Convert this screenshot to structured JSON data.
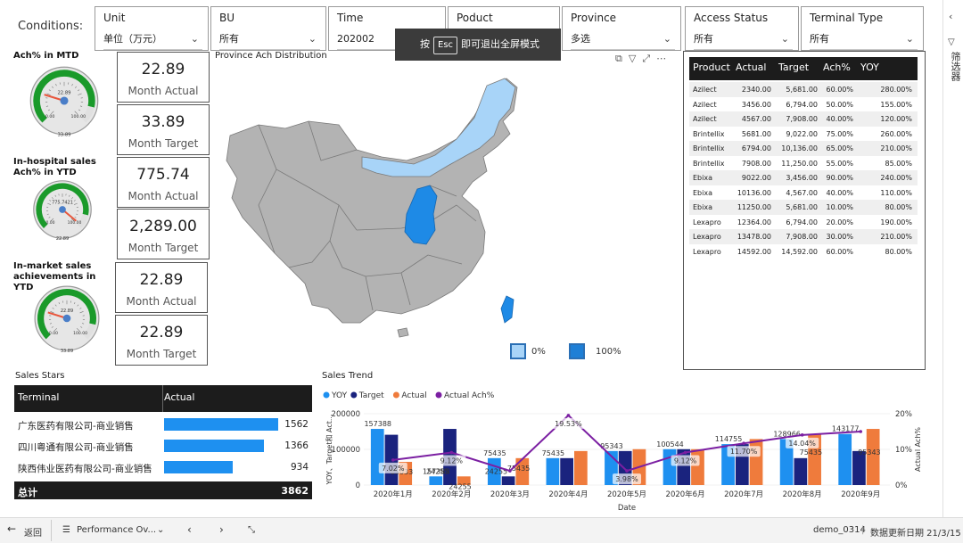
{
  "conditions_label": "Conditions:",
  "filters": [
    {
      "title": "Unit",
      "value": "单位（万元）"
    },
    {
      "title": "BU",
      "value": "所有"
    },
    {
      "title": "Time",
      "value": "202002"
    },
    {
      "title": "Poduct",
      "value": ""
    },
    {
      "title": "Province",
      "value": "多选"
    },
    {
      "title": "Access Status",
      "value": "所有"
    },
    {
      "title": "Terminal Type",
      "value": "所有"
    }
  ],
  "esc_banner": {
    "prefix": "按",
    "key": "Esc",
    "suffix": "即可退出全屏模式"
  },
  "gauges": [
    {
      "title": "Ach% in MTD",
      "value_label": "22.89",
      "min_label": "0.00",
      "max_label": "100.00",
      "bottom_label": "33.89",
      "fraction": 0.23
    },
    {
      "title": "In-hospital sales Ach% in YTD",
      "value_label": "775.7421",
      "min_label": "0.00",
      "max_label": "100.00",
      "bottom_label": "22.89",
      "fraction": 0.98
    },
    {
      "title": "In-market sales achievements in YTD",
      "value_label": "22.89",
      "min_label": "0.00",
      "max_label": "100.00",
      "bottom_label": "33.89",
      "fraction": 0.23
    }
  ],
  "kpis": [
    {
      "value": "22.89",
      "label": "Month Actual"
    },
    {
      "value": "33.89",
      "label": "Month Target"
    },
    {
      "value": "775.74",
      "label": "Month Actual"
    },
    {
      "value": "2,289.00",
      "label": "Month Target"
    },
    {
      "value": "22.89",
      "label": "Month Actual"
    },
    {
      "value": "22.89",
      "label": "Month Target"
    }
  ],
  "map": {
    "title": "Province Ach Distribution",
    "legend": [
      {
        "label": "0%",
        "color": "#a8d4f8"
      },
      {
        "label": "100%",
        "color": "#1e7fd6"
      }
    ],
    "colors": {
      "base": "#b0b0b0",
      "light": "#a8d4f8",
      "dark": "#1e8ae6"
    }
  },
  "product_table": {
    "columns": [
      "Product",
      "Actual",
      "Target",
      "Ach%",
      "YOY"
    ],
    "rows": [
      [
        "Azilect",
        "2340.00",
        "5,681.00",
        "60.00%",
        "280.00%"
      ],
      [
        "Azilect",
        "3456.00",
        "6,794.00",
        "50.00%",
        "155.00%"
      ],
      [
        "Azilect",
        "4567.00",
        "7,908.00",
        "40.00%",
        "120.00%"
      ],
      [
        "Brintellix",
        "5681.00",
        "9,022.00",
        "75.00%",
        "260.00%"
      ],
      [
        "Brintellix",
        "6794.00",
        "10,136.00",
        "65.00%",
        "210.00%"
      ],
      [
        "Brintellix",
        "7908.00",
        "11,250.00",
        "55.00%",
        "85.00%"
      ],
      [
        "Ebixa",
        "9022.00",
        "3,456.00",
        "90.00%",
        "240.00%"
      ],
      [
        "Ebixa",
        "10136.00",
        "4,567.00",
        "40.00%",
        "110.00%"
      ],
      [
        "Ebixa",
        "11250.00",
        "5,681.00",
        "10.00%",
        "80.00%"
      ],
      [
        "Lexapro",
        "12364.00",
        "6,794.00",
        "20.00%",
        "190.00%"
      ],
      [
        "Lexapro",
        "13478.00",
        "7,908.00",
        "30.00%",
        "210.00%"
      ],
      [
        "Lexapro",
        "14592.00",
        "14,592.00",
        "60.00%",
        "80.00%"
      ]
    ]
  },
  "sales_stars": {
    "title": "Sales Stars",
    "columns": [
      "Terminal",
      "Actual"
    ],
    "rows": [
      {
        "name": "广东医药有限公司-商业销售",
        "value": 1562
      },
      {
        "name": "四川粤通有限公司-商业销售",
        "value": 1366
      },
      {
        "name": "陕西伟业医药有限公司-商业销售",
        "value": 934
      }
    ],
    "total_label": "总计",
    "total_value": "3862",
    "bar_max": 1562
  },
  "chart_data": {
    "type": "bar",
    "title": "Sales Trend",
    "xlabel": "Date",
    "ylabel": "YOY、Target和 Act...",
    "y2label": "Actual Ach%",
    "categories": [
      "2020年1月",
      "2020年2月",
      "2020年3月",
      "2020年4月",
      "2020年5月",
      "2020年6月",
      "2020年7月",
      "2020年8月",
      "2020年9月"
    ],
    "ylim": [
      0,
      200000
    ],
    "yticks": [
      "0",
      "100000",
      "200000"
    ],
    "y2lim": [
      0,
      20
    ],
    "y2ticks": [
      "0%",
      "10%",
      "20%"
    ],
    "series": [
      {
        "name": "YOY",
        "color": "#1e90f0",
        "values": [
          157388,
          24255,
          75435,
          75435,
          95343,
          100544,
          114755,
          128966,
          143177
        ]
      },
      {
        "name": "Target",
        "color": "#1a237e",
        "values": [
          141000,
          157388,
          24255,
          75435,
          95343,
          100544,
          114755,
          75435,
          95343
        ]
      },
      {
        "name": "Actual",
        "color": "#ef7b3c",
        "values": [
          65033,
          24255,
          75435,
          95343,
          100544,
          100544,
          128966,
          143177,
          157388
        ]
      },
      {
        "name": "Actual Ach%",
        "color": "#7b1fa2",
        "type": "line",
        "values": [
          7.02,
          9.12,
          3.98,
          19.53,
          3.98,
          9.12,
          11.7,
          14.04,
          15.0
        ]
      }
    ],
    "data_labels_top": [
      "157388",
      "157388",
      "75435",
      "75435",
      "95343",
      "100544",
      "114755",
      "128966",
      "143177"
    ],
    "data_labels_mid": [
      "65033",
      "24255",
      "75435",
      "",
      "",
      "",
      "",
      "75435",
      "95343"
    ],
    "data_labels_left_mid": [
      "",
      "24255",
      "24255",
      "",
      "",
      "",
      "",
      "",
      ""
    ],
    "pct_labels": [
      "7.02%",
      "9.12%",
      "",
      "19.53%",
      "3.98%",
      "9.12%",
      "11.70%",
      "14.04%",
      ""
    ],
    "legend": [
      "YOY",
      "Target",
      "Actual",
      "Actual Ach%"
    ]
  },
  "bottom_bar": {
    "back": "返回",
    "page": "Performance Ov...",
    "report": "demo_0314",
    "updated": "数据更新日期 21/3/15"
  },
  "right_panel": {
    "label": "筛选器"
  }
}
